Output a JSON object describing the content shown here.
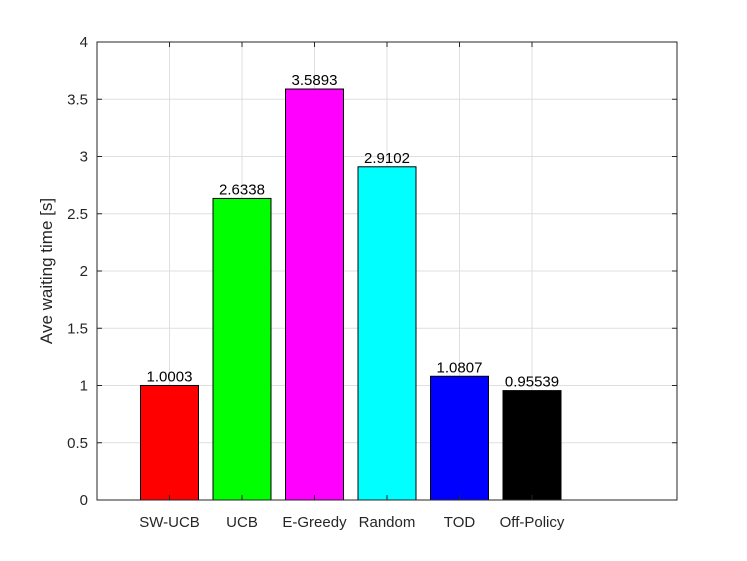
{
  "chart_data": {
    "type": "bar",
    "title": "",
    "xlabel": "",
    "ylabel": "Ave waiting time [s]",
    "ylim": [
      0,
      4
    ],
    "yticks": [
      "0",
      "0.5",
      "1",
      "1.5",
      "2",
      "2.5",
      "3",
      "3.5",
      "4"
    ],
    "grid": true,
    "categories": [
      "SW-UCB",
      "UCB",
      "E-Greedy",
      "Random",
      "TOD",
      "Off-Policy"
    ],
    "values": [
      1.0003,
      2.6338,
      3.5893,
      2.9102,
      1.0807,
      0.95539
    ],
    "data_labels": [
      "1.0003",
      "2.6338",
      "3.5893",
      "2.9102",
      "1.0807",
      "0.95539"
    ],
    "colors": [
      "#ff0000",
      "#00ff00",
      "#ff00ff",
      "#00ffff",
      "#0000ff",
      "#000000"
    ]
  }
}
